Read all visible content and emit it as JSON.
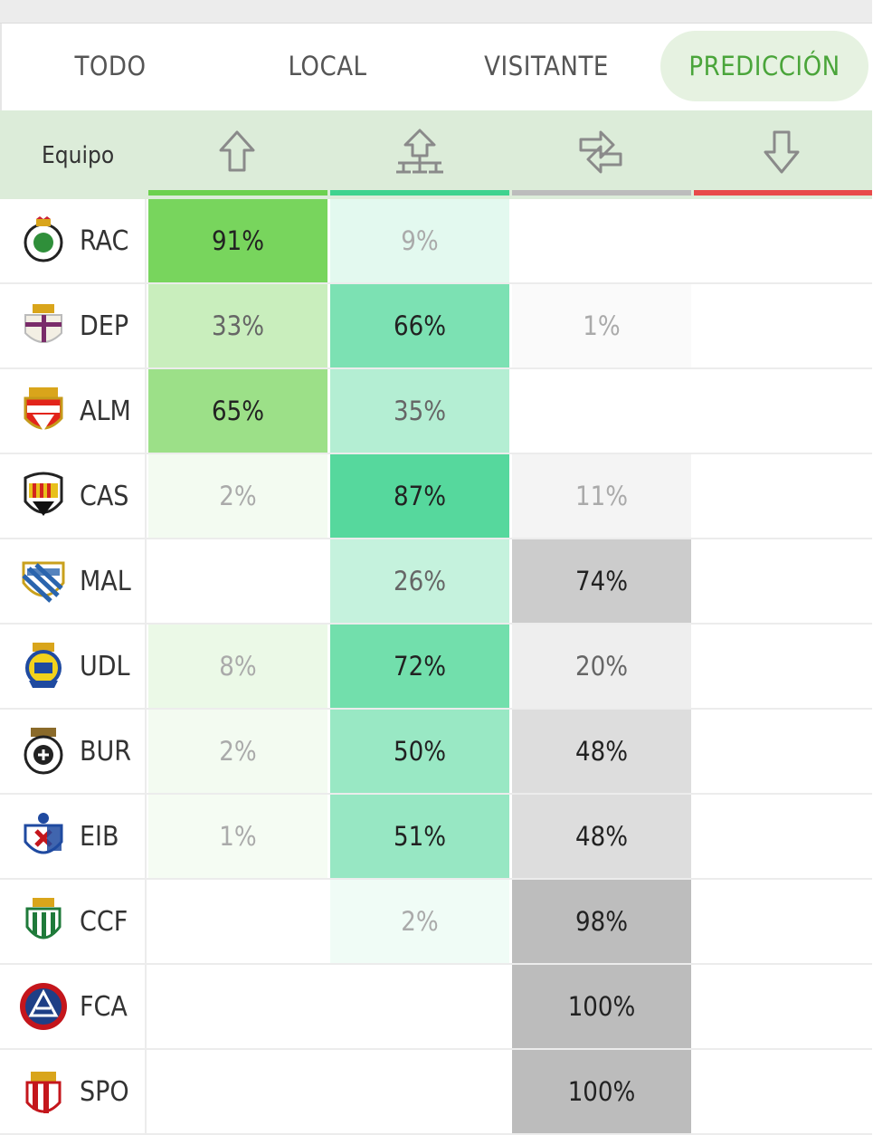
{
  "tabs": [
    {
      "label": "TODO",
      "active": false
    },
    {
      "label": "LOCAL",
      "active": false
    },
    {
      "label": "VISITANTE",
      "active": false
    },
    {
      "label": "PREDICCIÓN",
      "active": true
    }
  ],
  "header": {
    "team_label": "Equipo",
    "columns": [
      {
        "icon": "arrow-up-icon",
        "bar_color": "#6cd14e"
      },
      {
        "icon": "playoff-bracket-icon",
        "bar_color": "#3fd38f"
      },
      {
        "icon": "swap-arrows-icon",
        "bar_color": "#bcbcbc"
      },
      {
        "icon": "arrow-down-icon",
        "bar_color": "#e84a4a"
      }
    ]
  },
  "colors": {
    "ascenso": "#6cd14e",
    "playoff": "#3fd38f",
    "permanencia": "#bcbcbc",
    "descenso": "#e84a4a"
  },
  "rows": [
    {
      "team": "RAC",
      "crest": "racing-crest-icon",
      "values": [
        "91%",
        "9%",
        "",
        ""
      ],
      "shares": [
        0.91,
        0.09,
        0,
        0
      ]
    },
    {
      "team": "DEP",
      "crest": "deportivo-crest-icon",
      "values": [
        "33%",
        "66%",
        "1%",
        ""
      ],
      "shares": [
        0.33,
        0.66,
        0.01,
        0
      ]
    },
    {
      "team": "ALM",
      "crest": "almeria-crest-icon",
      "values": [
        "65%",
        "35%",
        "",
        ""
      ],
      "shares": [
        0.65,
        0.35,
        0,
        0
      ]
    },
    {
      "team": "CAS",
      "crest": "castellon-crest-icon",
      "values": [
        "2%",
        "87%",
        "11%",
        ""
      ],
      "shares": [
        0.02,
        0.87,
        0.11,
        0
      ]
    },
    {
      "team": "MAL",
      "crest": "malaga-crest-icon",
      "values": [
        "",
        "26%",
        "74%",
        ""
      ],
      "shares": [
        0,
        0.26,
        0.74,
        0
      ]
    },
    {
      "team": "UDL",
      "crest": "las-palmas-crest-icon",
      "values": [
        "8%",
        "72%",
        "20%",
        ""
      ],
      "shares": [
        0.08,
        0.72,
        0.2,
        0
      ]
    },
    {
      "team": "BUR",
      "crest": "burgos-crest-icon",
      "values": [
        "2%",
        "50%",
        "48%",
        ""
      ],
      "shares": [
        0.02,
        0.5,
        0.48,
        0
      ]
    },
    {
      "team": "EIB",
      "crest": "eibar-crest-icon",
      "values": [
        "1%",
        "51%",
        "48%",
        ""
      ],
      "shares": [
        0.01,
        0.51,
        0.48,
        0
      ]
    },
    {
      "team": "CCF",
      "crest": "cordoba-crest-icon",
      "values": [
        "",
        "2%",
        "98%",
        ""
      ],
      "shares": [
        0,
        0.02,
        0.98,
        0
      ]
    },
    {
      "team": "FCA",
      "crest": "andorra-crest-icon",
      "values": [
        "",
        "",
        "100%",
        ""
      ],
      "shares": [
        0,
        0,
        1.0,
        0
      ]
    },
    {
      "team": "SPO",
      "crest": "sporting-crest-icon",
      "values": [
        "",
        "",
        "100%",
        ""
      ],
      "shares": [
        0,
        0,
        1.0,
        0
      ]
    }
  ]
}
